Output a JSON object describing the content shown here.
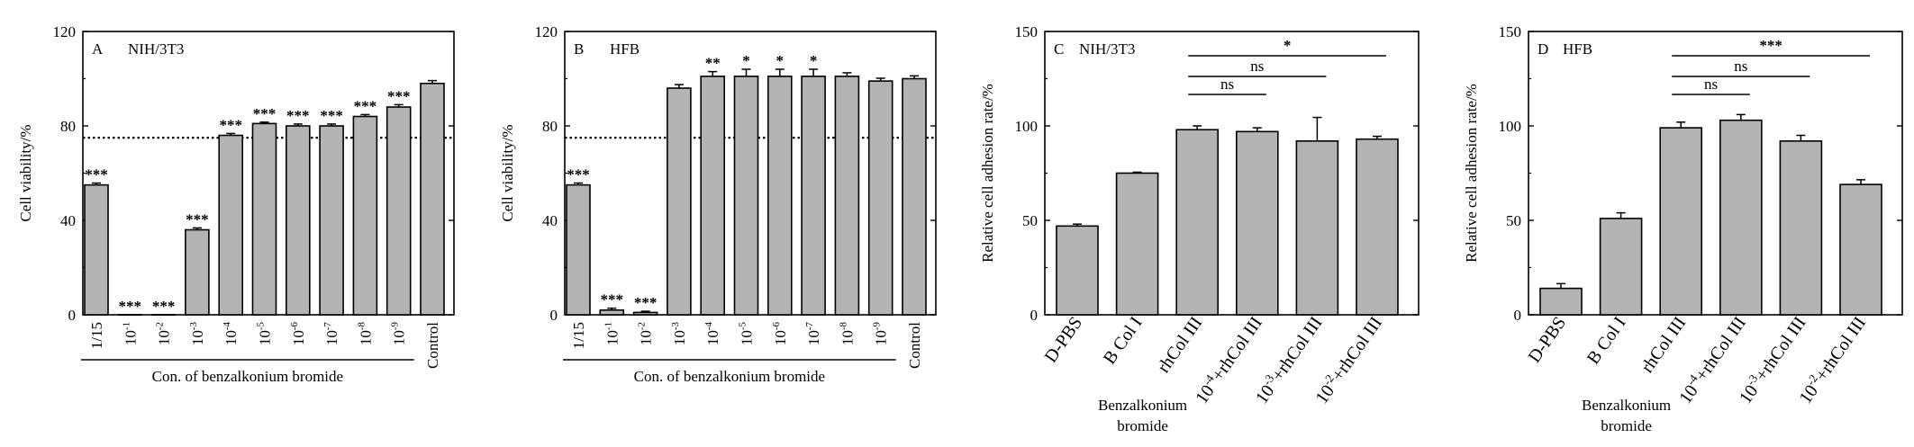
{
  "chart_data": [
    {
      "type": "bar",
      "panel_label": "A",
      "cell_line": "NIH/3T3",
      "ylabel": "Cell viability/%",
      "ylim": [
        0,
        120
      ],
      "yticks": [
        "0",
        "40",
        "80",
        "120"
      ],
      "reference_line": 75,
      "categories": [
        {
          "base": "1/15",
          "exp": ""
        },
        {
          "base": "10",
          "exp": "-1"
        },
        {
          "base": "10",
          "exp": "-2"
        },
        {
          "base": "10",
          "exp": "-3"
        },
        {
          "base": "10",
          "exp": "-4"
        },
        {
          "base": "10",
          "exp": "-5"
        },
        {
          "base": "10",
          "exp": "-6"
        },
        {
          "base": "10",
          "exp": "-7"
        },
        {
          "base": "10",
          "exp": "-8"
        },
        {
          "base": "10",
          "exp": "-9"
        },
        {
          "base": "Control",
          "exp": ""
        }
      ],
      "values": [
        55,
        0,
        0,
        36,
        76,
        81,
        80,
        80,
        84,
        88,
        98
      ],
      "errors": [
        0.8,
        0,
        0,
        0.8,
        0.8,
        0.6,
        0.8,
        0.8,
        0.8,
        1.0,
        1.2
      ],
      "significance": [
        "***",
        "***",
        "***",
        "***",
        "***",
        "***",
        "***",
        "***",
        "***",
        "***",
        ""
      ],
      "group_label": "Con. of benzalkonium bromide",
      "group_span": [
        0,
        9
      ]
    },
    {
      "type": "bar",
      "panel_label": "B",
      "cell_line": "HFB",
      "ylabel": "Cell viability/%",
      "ylim": [
        0,
        120
      ],
      "yticks": [
        "0",
        "40",
        "80",
        "120"
      ],
      "reference_line": 75,
      "categories": [
        {
          "base": "1/15",
          "exp": ""
        },
        {
          "base": "10",
          "exp": "-1"
        },
        {
          "base": "10",
          "exp": "-2"
        },
        {
          "base": "10",
          "exp": "-3"
        },
        {
          "base": "10",
          "exp": "-4"
        },
        {
          "base": "10",
          "exp": "-5"
        },
        {
          "base": "10",
          "exp": "-6"
        },
        {
          "base": "10",
          "exp": "-7"
        },
        {
          "base": "10",
          "exp": "-8"
        },
        {
          "base": "10",
          "exp": "-9"
        },
        {
          "base": "Control",
          "exp": ""
        }
      ],
      "values": [
        55,
        2,
        1,
        96,
        101,
        101,
        101,
        101,
        101,
        99,
        100
      ],
      "errors": [
        0.8,
        0.8,
        0.5,
        1.5,
        2.0,
        3.0,
        3.0,
        3.0,
        1.5,
        1.2,
        1.2
      ],
      "significance": [
        "***",
        "***",
        "***",
        "",
        "**",
        "*",
        "*",
        "*",
        "",
        "",
        ""
      ],
      "group_label": "Con. of benzalkonium bromide",
      "group_span": [
        0,
        9
      ]
    },
    {
      "type": "bar",
      "panel_label": "C",
      "cell_line": "NIH/3T3",
      "ylabel": "Relative cell adhesion rate/%",
      "ylim": [
        0,
        150
      ],
      "yticks": [
        "0",
        "50",
        "100",
        "150"
      ],
      "categories": [
        {
          "pre": "",
          "exp": "",
          "rest": "D-PBS"
        },
        {
          "pre": "",
          "exp": "",
          "rest": "B Col I"
        },
        {
          "pre": "",
          "exp": "",
          "rest": "rhCol III"
        },
        {
          "pre": "10",
          "exp": "-4",
          "rest": "+rhCol III"
        },
        {
          "pre": "10",
          "exp": "-3",
          "rest": "+rhCol III"
        },
        {
          "pre": "10",
          "exp": "-2",
          "rest": "+rhCol III"
        }
      ],
      "values": [
        47,
        75,
        98,
        97,
        92,
        93
      ],
      "errors": [
        1.0,
        0.5,
        2.0,
        2.0,
        12.5,
        1.5
      ],
      "brackets": [
        {
          "from": 2,
          "to": 3,
          "label": "ns"
        },
        {
          "from": 2,
          "to": 4,
          "label": "ns"
        },
        {
          "from": 2,
          "to": 5,
          "label": "*"
        }
      ],
      "group_label_lines": [
        "Benzalkonium",
        "bromide"
      ]
    },
    {
      "type": "bar",
      "panel_label": "D",
      "cell_line": "HFB",
      "ylabel": "Relative cell adhesion rate/%",
      "ylim": [
        0,
        150
      ],
      "yticks": [
        "0",
        "50",
        "100",
        "150"
      ],
      "categories": [
        {
          "pre": "",
          "exp": "",
          "rest": "D-PBS"
        },
        {
          "pre": "",
          "exp": "",
          "rest": "B Col I"
        },
        {
          "pre": "",
          "exp": "",
          "rest": "rhCol III"
        },
        {
          "pre": "10",
          "exp": "-4",
          "rest": "+rhCol III"
        },
        {
          "pre": "10",
          "exp": "-3",
          "rest": "+rhCol III"
        },
        {
          "pre": "10",
          "exp": "-2",
          "rest": "+rhCol III"
        }
      ],
      "values": [
        14,
        51,
        99,
        103,
        92,
        69
      ],
      "errors": [
        2.5,
        3.0,
        3.0,
        3.0,
        3.0,
        2.5
      ],
      "brackets": [
        {
          "from": 2,
          "to": 3,
          "label": "ns"
        },
        {
          "from": 2,
          "to": 4,
          "label": "ns"
        },
        {
          "from": 2,
          "to": 5,
          "label": "***"
        }
      ],
      "group_label_lines": [
        "Benzalkonium",
        "bromide"
      ]
    }
  ],
  "style": {
    "bar_fill": "#b4b4b4",
    "bar_stroke": "#000000",
    "axis_color": "#000000"
  }
}
